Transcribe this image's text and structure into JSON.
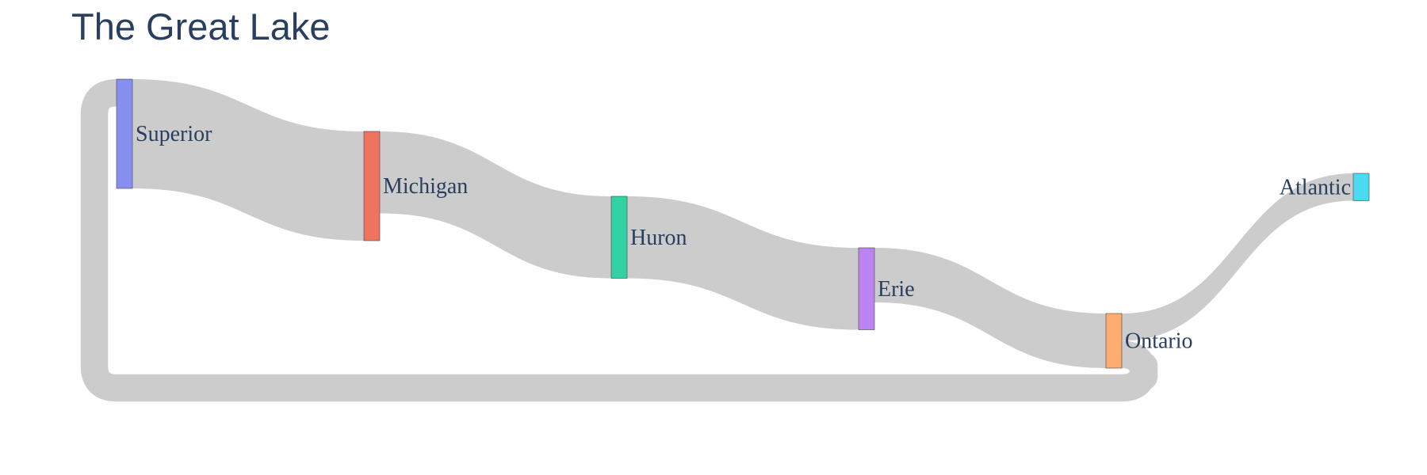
{
  "title": "The Great Lake",
  "nodes": [
    {
      "id": "superior",
      "label": "Superior",
      "color": "#8590f1"
    },
    {
      "id": "michigan",
      "label": "Michigan",
      "color": "#ef735e"
    },
    {
      "id": "huron",
      "label": "Huron",
      "color": "#33d2a4"
    },
    {
      "id": "erie",
      "label": "Erie",
      "color": "#bd83f4"
    },
    {
      "id": "ontario",
      "label": "Ontario",
      "color": "#fdad70"
    },
    {
      "id": "atlantic",
      "label": "Atlantic",
      "color": "#4adbf3"
    }
  ],
  "links": [
    {
      "source": "superior",
      "target": "michigan",
      "value": 4
    },
    {
      "source": "michigan",
      "target": "huron",
      "value": 3
    },
    {
      "source": "huron",
      "target": "erie",
      "value": 3
    },
    {
      "source": "erie",
      "target": "ontario",
      "value": 2
    },
    {
      "source": "ontario",
      "target": "atlantic",
      "value": 1
    },
    {
      "source": "ontario",
      "target": "superior",
      "value": 1
    }
  ]
}
